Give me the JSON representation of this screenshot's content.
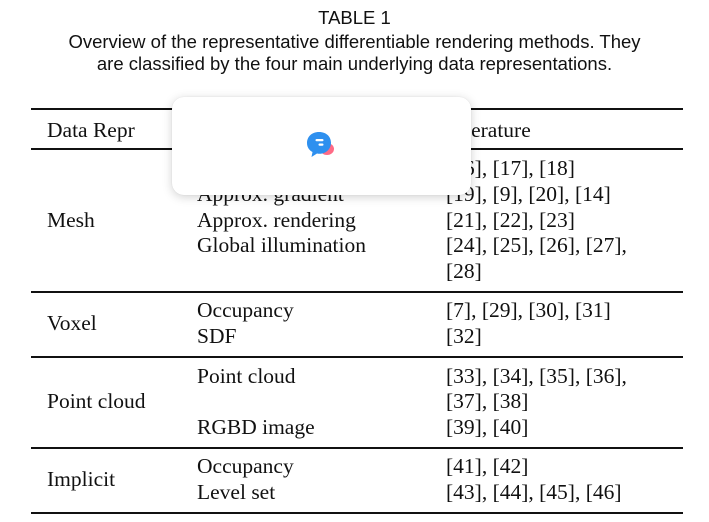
{
  "caption": {
    "label": "TABLE 1",
    "line1": "Overview of the representative differentiable rendering methods. They",
    "line2": "are classified by the four main underlying data representations."
  },
  "table": {
    "headers": [
      "Data Repr",
      "Literature"
    ],
    "rows": {
      "mesh": {
        "label": "Mesh",
        "methods": [
          "Approx. gradient",
          "Approx. rendering",
          "Global illumination"
        ],
        "refs": [
          "[16], [17], [18]",
          "[19], [9], [20], [14]",
          "[21], [22], [23]",
          "[24], [25], [26], [27],",
          "[28]"
        ]
      },
      "voxel": {
        "label": "Voxel",
        "methods": [
          "Occupancy",
          "SDF"
        ],
        "refs": [
          "[7], [29], [30], [31]",
          "[32]"
        ]
      },
      "point_cloud": {
        "label": "Point cloud",
        "methods": [
          "Point cloud",
          "RGBD image"
        ],
        "refs": [
          "[33], [34], [35], [36],",
          "[37], [38]",
          "[39], [40]"
        ]
      },
      "implicit": {
        "label": "Implicit",
        "methods": [
          "Occupancy",
          "Level set"
        ],
        "refs": [
          "[41], [42]",
          "[43], [44], [45], [46]"
        ]
      }
    }
  },
  "overlay": {
    "icon": "chat-bubble-logo-icon",
    "accent": "#2f8ff0",
    "accent2": "#ff5f7e"
  }
}
